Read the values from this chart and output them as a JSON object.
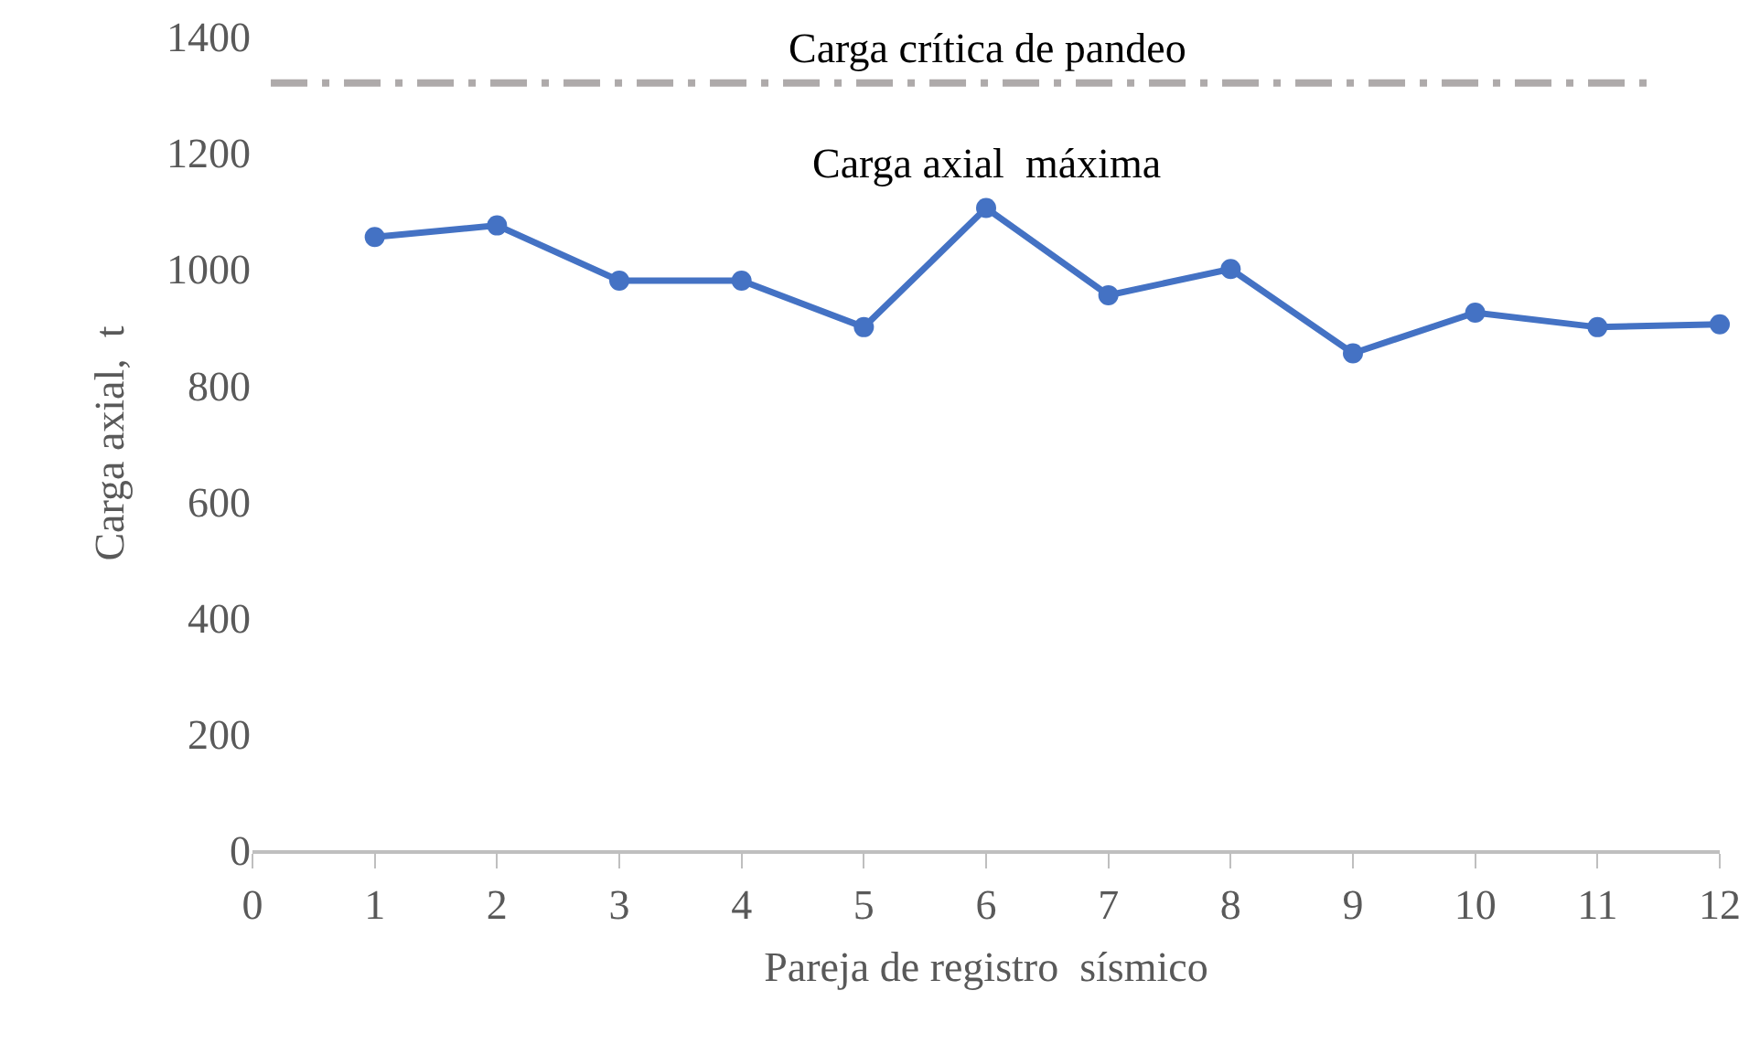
{
  "chart_data": {
    "type": "line",
    "xlabel": "Pareja de registro  sísmico",
    "ylabel": "Carga axial,  t",
    "x": [
      1,
      2,
      3,
      4,
      5,
      6,
      7,
      8,
      9,
      10,
      11,
      12
    ],
    "series": [
      {
        "name": "Carga axial  máxima",
        "color": "#4472c4",
        "values": [
          1055,
          1075,
          980,
          980,
          900,
          1105,
          955,
          1000,
          855,
          925,
          900,
          905
        ]
      }
    ],
    "xlim": [
      0,
      12
    ],
    "xticks": [
      0,
      1,
      2,
      3,
      4,
      5,
      6,
      7,
      8,
      9,
      10,
      11,
      12
    ],
    "ylim": [
      0,
      1400
    ],
    "yticks": [
      0,
      200,
      400,
      600,
      800,
      1000,
      1200,
      1400
    ],
    "ref_lines": [
      {
        "axis": "y",
        "value": 1320,
        "label": "Carga crítica de pandeo",
        "color": "#aeaaaa",
        "line_style": "dashed"
      }
    ],
    "grid": false,
    "legend": false,
    "marker": "circle",
    "line_style": "solid"
  }
}
